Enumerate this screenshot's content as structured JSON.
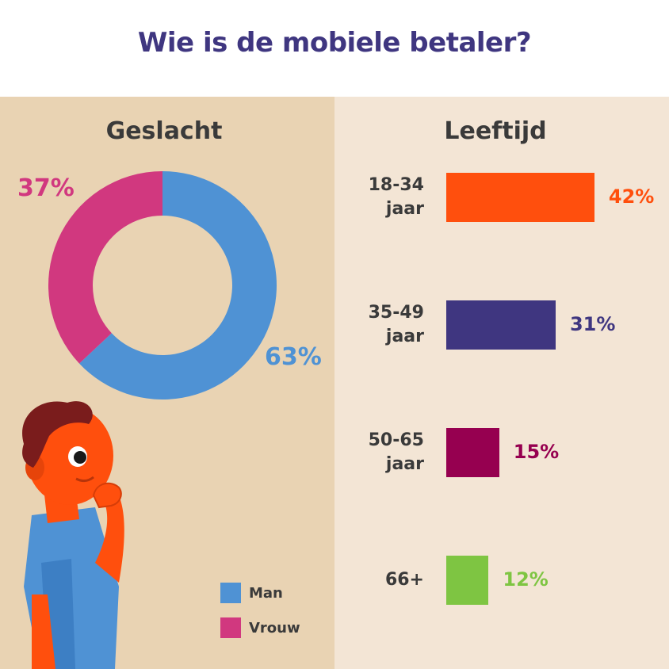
{
  "title": "Wie is de mobiele betaler?",
  "left": {
    "heading": "Geslacht",
    "legend": [
      {
        "label": "Man",
        "color": "#4f92d4"
      },
      {
        "label": "Vrouw",
        "color": "#d1387f"
      }
    ]
  },
  "right": {
    "heading": "Leeftijd"
  },
  "chart_data": [
    {
      "type": "pie",
      "title": "Geslacht",
      "categories": [
        "Man",
        "Vrouw"
      ],
      "values": [
        63,
        37
      ],
      "labels": [
        "63%",
        "37%"
      ],
      "colors": [
        "#4f92d4",
        "#d1387f"
      ],
      "donut": true
    },
    {
      "type": "bar",
      "orientation": "horizontal",
      "title": "Leeftijd",
      "categories": [
        [
          "18-34",
          "jaar"
        ],
        [
          "35-49",
          "jaar"
        ],
        [
          "50-65",
          "jaar"
        ],
        [
          "66+"
        ]
      ],
      "values": [
        42,
        31,
        15,
        12
      ],
      "labels": [
        "42%",
        "31%",
        "15%",
        "12%"
      ],
      "colors": [
        "#ff4f0d",
        "#3f3680",
        "#960050",
        "#7ec542"
      ]
    }
  ]
}
